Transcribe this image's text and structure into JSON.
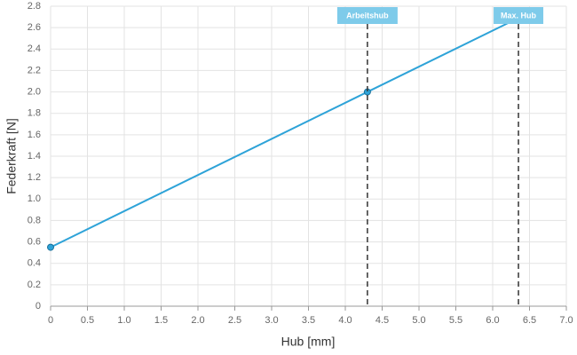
{
  "chart_data": {
    "type": "line",
    "x_label": "Hub [mm]",
    "y_label": "Federkraft [N]",
    "x": [
      0,
      4.3,
      6.35
    ],
    "values": [
      0.55,
      2.0,
      2.69
    ],
    "color": "#2ea3d8",
    "xlim": [
      0,
      7
    ],
    "ylim": [
      0,
      2.8
    ],
    "xticks": [
      0,
      0.5,
      {
        "value": 1,
        "label": "1.0"
      },
      1.5,
      {
        "value": 2,
        "label": "2.0"
      },
      2.5,
      {
        "value": 3,
        "label": "3.0"
      },
      3.5,
      {
        "value": 4,
        "label": "4.0"
      },
      4.5,
      {
        "value": 5,
        "label": "5.0"
      },
      5.5,
      {
        "value": 6,
        "label": "6.0"
      },
      6.5,
      {
        "value": 7,
        "label": "7.0"
      }
    ],
    "yticks": [
      0,
      0.2,
      0.4,
      0.6,
      0.8,
      {
        "value": 1,
        "label": "1.0"
      },
      1.2,
      1.4,
      1.6,
      1.8,
      {
        "value": 2,
        "label": "2.0"
      },
      2.2,
      2.4,
      2.6,
      2.8
    ],
    "grid": true,
    "annotations": [
      {
        "x": 4.3,
        "label": "Arbeitshub"
      },
      {
        "x": 6.35,
        "label": "Max. Hub"
      }
    ],
    "annotation_color": "#7ecbea"
  }
}
